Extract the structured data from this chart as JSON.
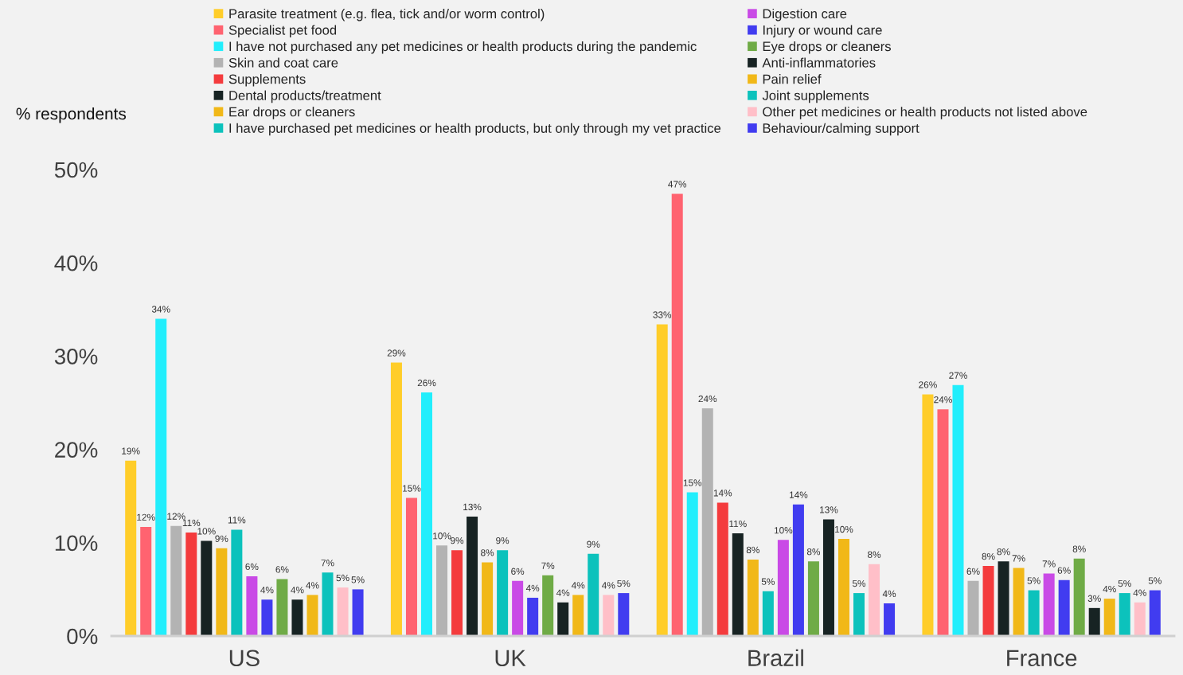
{
  "chart_data": {
    "type": "bar",
    "ylabel": "% respondents",
    "categories": [
      "US",
      "UK",
      "Brazil",
      "France"
    ],
    "ylim": [
      0,
      50
    ],
    "yticks": [
      {
        "value": 0,
        "label": "0%"
      },
      {
        "value": 10,
        "label": "10%"
      },
      {
        "value": 20,
        "label": "20%"
      },
      {
        "value": 30,
        "label": "30%"
      },
      {
        "value": 40,
        "label": "40%"
      },
      {
        "value": 50,
        "label": "50%"
      }
    ],
    "grid": false,
    "legend": "top",
    "series": [
      {
        "name": "Parasite treatment (e.g. flea, tick and/or worm control)",
        "color": "#ffcd29",
        "values": [
          18.8,
          29.3,
          33.4,
          25.9
        ],
        "value_labels": [
          "19%",
          "29%",
          "33%",
          "26%"
        ]
      },
      {
        "name": "Specialist pet food",
        "color": "#ff6370",
        "values": [
          11.7,
          14.8,
          47.4,
          24.3
        ],
        "value_labels": [
          "12%",
          "15%",
          "47%",
          "24%"
        ]
      },
      {
        "name": "I have not purchased any pet medicines or health products during the pandemic",
        "color": "#22eefc",
        "values": [
          34.0,
          26.1,
          15.4,
          26.9
        ],
        "value_labels": [
          "34%",
          "26%",
          "15%",
          "27%"
        ]
      },
      {
        "name": "Skin and coat care",
        "color": "#b3b3b3",
        "values": [
          11.8,
          9.7,
          24.4,
          5.9
        ],
        "value_labels": [
          "12%",
          "10%",
          "24%",
          "6%"
        ]
      },
      {
        "name": "Supplements",
        "color": "#f43b3d",
        "values": [
          11.1,
          9.2,
          14.3,
          7.5
        ],
        "value_labels": [
          "11%",
          "9%",
          "14%",
          "8%"
        ]
      },
      {
        "name": "Dental products/treatment",
        "color": "#172323",
        "values": [
          10.2,
          12.8,
          11.0,
          8.0
        ],
        "value_labels": [
          "10%",
          "13%",
          "11%",
          "8%"
        ]
      },
      {
        "name": "Ear drops or cleaners",
        "color": "#f1b818",
        "values": [
          9.4,
          7.9,
          8.2,
          7.3
        ],
        "value_labels": [
          "9%",
          "8%",
          "8%",
          "7%"
        ]
      },
      {
        "name": "I have purchased pet medicines or health products, but only through my vet practice",
        "color": "#0cc2bc",
        "values": [
          11.4,
          9.2,
          4.8,
          4.9
        ],
        "value_labels": [
          "11%",
          "9%",
          "5%",
          "5%"
        ]
      },
      {
        "name": "Digestion care",
        "color": "#c94ae6",
        "values": [
          6.4,
          5.9,
          10.3,
          6.7
        ],
        "value_labels": [
          "6%",
          "6%",
          "10%",
          "7%"
        ]
      },
      {
        "name": "Injury or wound care",
        "color": "#413cf0",
        "values": [
          3.9,
          4.1,
          14.1,
          6.0
        ],
        "value_labels": [
          "4%",
          "4%",
          "14%",
          "6%"
        ]
      },
      {
        "name": "Eye drops or cleaners",
        "color": "#6fab46",
        "values": [
          6.1,
          6.5,
          8.0,
          8.3
        ],
        "value_labels": [
          "6%",
          "7%",
          "8%",
          "8%"
        ]
      },
      {
        "name": "Anti-inflammatories",
        "color": "#172323",
        "values": [
          3.9,
          3.6,
          12.5,
          3.0
        ],
        "value_labels": [
          "4%",
          "4%",
          "13%",
          "3%"
        ]
      },
      {
        "name": "Pain relief",
        "color": "#f1b818",
        "values": [
          4.4,
          4.4,
          10.4,
          4.0
        ],
        "value_labels": [
          "4%",
          "4%",
          "10%",
          "4%"
        ]
      },
      {
        "name": "Joint supplements",
        "color": "#0cc2bc",
        "values": [
          6.8,
          8.8,
          4.6,
          4.6
        ],
        "value_labels": [
          "7%",
          "9%",
          "5%",
          "5%"
        ]
      },
      {
        "name": "Other pet medicines or health products not listed above",
        "color": "#ffbfc8",
        "values": [
          5.2,
          4.4,
          7.7,
          3.6
        ],
        "value_labels": [
          "5%",
          "4%",
          "8%",
          "4%"
        ]
      },
      {
        "name": "Behaviour/calming support",
        "color": "#413cf0",
        "values": [
          5.0,
          4.6,
          3.5,
          4.9
        ],
        "value_labels": [
          "5%",
          "5%",
          "4%",
          "5%"
        ]
      }
    ]
  }
}
